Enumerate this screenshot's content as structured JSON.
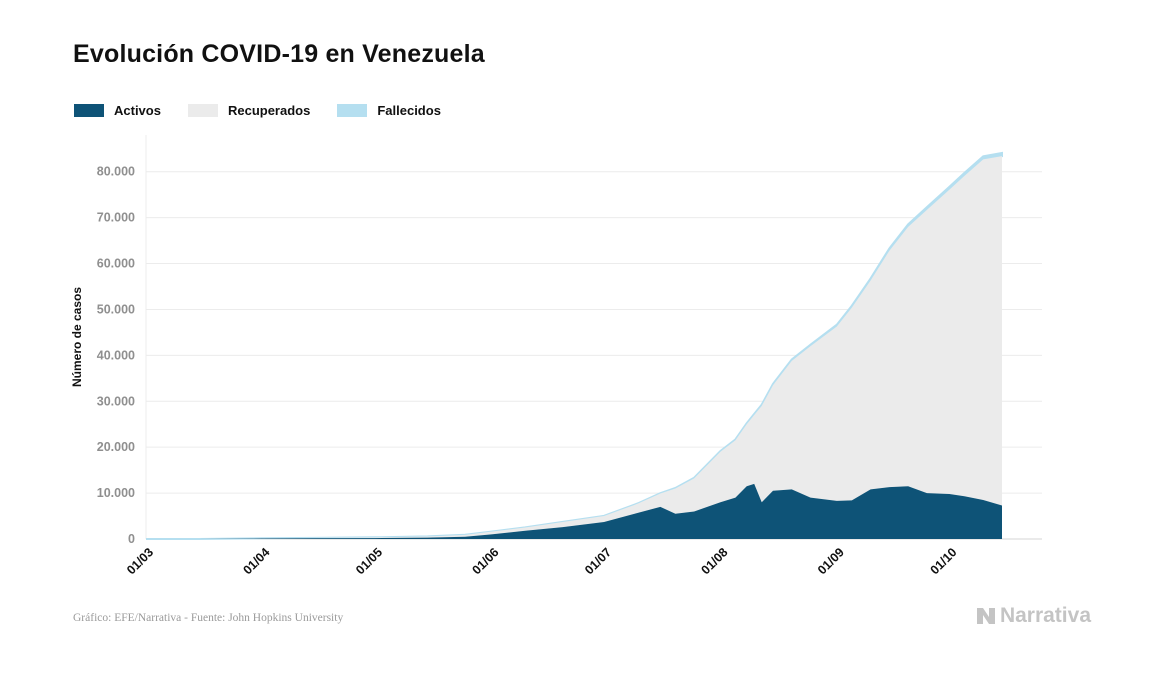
{
  "title": "Evolución COVID-19 en Venezuela",
  "legend": [
    {
      "label": "Activos",
      "color": "#0e5377"
    },
    {
      "label": "Recuperados",
      "color": "#ebebeb"
    },
    {
      "label": "Fallecidos",
      "color": "#b5dff0"
    }
  ],
  "footer": {
    "source": "Gráfico: EFE/Narrativa - Fuente: John Hopkins University",
    "brand": "Narrativa"
  },
  "chart_data": {
    "type": "area",
    "stacked": true,
    "ylabel": "Número de casos",
    "ylim": [
      0,
      88000
    ],
    "yticks": [
      0,
      10000,
      20000,
      30000,
      40000,
      50000,
      60000,
      70000,
      80000
    ],
    "ytick_labels": [
      "0",
      "10.000",
      "20.000",
      "30.000",
      "40.000",
      "50.000",
      "60.000",
      "70.000",
      "80.000"
    ],
    "xticks": [
      "01/03",
      "01/04",
      "01/05",
      "01/06",
      "01/07",
      "01/08",
      "01/09",
      "01/10"
    ],
    "grid": "horizontal",
    "legend_position": "top-left",
    "x": [
      "01/03",
      "15/03",
      "01/04",
      "15/04",
      "01/05",
      "15/05",
      "25/05",
      "01/06",
      "10/06",
      "20/06",
      "01/07",
      "10/07",
      "16/07",
      "20/07",
      "25/07",
      "01/08",
      "05/08",
      "08/08",
      "10/08",
      "12/08",
      "15/08",
      "20/08",
      "25/08",
      "01/09",
      "05/09",
      "10/09",
      "15/09",
      "20/09",
      "25/09",
      "01/10",
      "05/10",
      "10/10",
      "15/10"
    ],
    "series": [
      {
        "name": "Activos",
        "values": [
          0,
          0,
          100,
          150,
          200,
          300,
          500,
          1000,
          1800,
          2600,
          3700,
          5700,
          7000,
          5500,
          6000,
          8000,
          9000,
          11500,
          12000,
          8000,
          10500,
          10800,
          9000,
          8300,
          8400,
          10800,
          11300,
          11500,
          10000,
          9800,
          9300,
          8500,
          7300
        ]
      },
      {
        "name": "Recuperados",
        "values": [
          0,
          0,
          60,
          100,
          160,
          250,
          400,
          600,
          700,
          1100,
          1300,
          2000,
          2900,
          5500,
          7200,
          11000,
          12500,
          13500,
          15000,
          21000,
          23000,
          28000,
          33000,
          38000,
          42000,
          45500,
          51500,
          56500,
          61700,
          66300,
          69800,
          74200,
          76100
        ]
      },
      {
        "name": "Fallecidos",
        "values": [
          0,
          0,
          3,
          6,
          10,
          12,
          14,
          20,
          25,
          30,
          40,
          60,
          80,
          110,
          140,
          170,
          200,
          220,
          250,
          270,
          290,
          310,
          340,
          380,
          410,
          460,
          500,
          540,
          580,
          620,
          640,
          670,
          690
        ]
      }
    ]
  }
}
